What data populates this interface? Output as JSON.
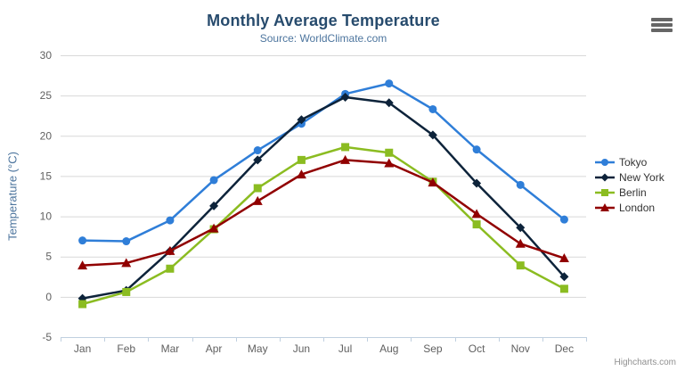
{
  "chart_data": {
    "type": "line",
    "title": "Monthly Average Temperature",
    "subtitle": "Source: WorldClimate.com",
    "categories": [
      "Jan",
      "Feb",
      "Mar",
      "Apr",
      "May",
      "Jun",
      "Jul",
      "Aug",
      "Sep",
      "Oct",
      "Nov",
      "Dec"
    ],
    "xlabel": "",
    "ylabel": "Temperature (°C)",
    "ylim": [
      -5,
      30
    ],
    "ytick_interval": 5,
    "grid": true,
    "legend_position": "right",
    "series": [
      {
        "name": "Tokyo",
        "color": "#2f7ed8",
        "marker": "circle",
        "values": [
          7.0,
          6.9,
          9.5,
          14.5,
          18.2,
          21.5,
          25.2,
          26.5,
          23.3,
          18.3,
          13.9,
          9.6
        ]
      },
      {
        "name": "New York",
        "color": "#0d233a",
        "marker": "diamond",
        "values": [
          -0.2,
          0.8,
          5.7,
          11.3,
          17.0,
          22.0,
          24.8,
          24.1,
          20.1,
          14.1,
          8.6,
          2.5
        ]
      },
      {
        "name": "Berlin",
        "color": "#8bbc21",
        "marker": "square",
        "values": [
          -0.9,
          0.6,
          3.5,
          8.4,
          13.5,
          17.0,
          18.6,
          17.9,
          14.3,
          9.0,
          3.9,
          1.0
        ]
      },
      {
        "name": "London",
        "color": "#910000",
        "marker": "triangle",
        "values": [
          3.9,
          4.2,
          5.7,
          8.5,
          11.9,
          15.2,
          17.0,
          16.6,
          14.2,
          10.3,
          6.6,
          4.8
        ]
      }
    ],
    "theme": {
      "background": "#ffffff",
      "title_color": "#274b6d",
      "subtitle_color": "#4d759e",
      "y_title_color": "#4d759e",
      "axis_label_color": "#606060",
      "grid_color": "#d8d8d8",
      "axis_line_color": "#c0d0e0",
      "legend_text_color": "#333333",
      "menu_icon_color": "#666666",
      "credits_color": "#909090"
    },
    "credits": "Highcharts.com",
    "menu_icon": "hamburger-menu-icon"
  }
}
